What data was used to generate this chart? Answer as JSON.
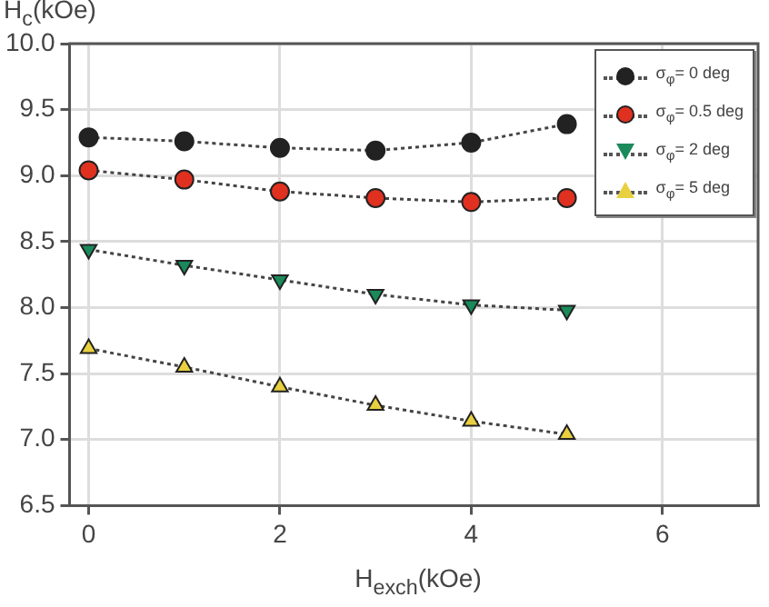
{
  "chart_data": {
    "type": "line",
    "xlabel": "H$_{exch}$(kOe)",
    "ylabel": "H$_{c}$(kOe)",
    "x": [
      0,
      1,
      2,
      3,
      4,
      5
    ],
    "series": [
      {
        "name": "σ$_{φ}$= 0 deg",
        "color": "#222222",
        "marker": "circle",
        "values": [
          9.29,
          9.26,
          9.21,
          9.19,
          9.25,
          9.39
        ]
      },
      {
        "name": "σ$_{φ}$= 0.5 deg",
        "color": "#e03020",
        "marker": "circle",
        "values": [
          9.04,
          8.97,
          8.88,
          8.83,
          8.8,
          8.83
        ]
      },
      {
        "name": "σ$_{φ}$= 2 deg",
        "color": "#1a8a5a",
        "marker": "triangle-down",
        "values": [
          8.44,
          8.32,
          8.21,
          8.1,
          8.02,
          7.98
        ]
      },
      {
        "name": "σ$_{φ}$= 5 deg",
        "color": "#e8d040",
        "marker": "triangle",
        "values": [
          7.69,
          7.55,
          7.4,
          7.26,
          7.14,
          7.04
        ]
      }
    ],
    "xlim": [
      -0.2,
      7
    ],
    "xticks": [
      0,
      2,
      4,
      6
    ],
    "ylim": [
      6.5,
      10
    ],
    "yticks": [
      {
        "value": 6.5,
        "label": "6.5"
      },
      {
        "value": 7,
        "label": "7.0"
      },
      {
        "value": 7.5,
        "label": "7.5"
      },
      {
        "value": 8,
        "label": "8.0"
      },
      {
        "value": 8.5,
        "label": "8.5"
      },
      {
        "value": 9,
        "label": "9.0"
      },
      {
        "value": 9.5,
        "label": "9.5"
      },
      {
        "value": 10,
        "label": "10.0"
      }
    ],
    "grid": true,
    "legend": "top right",
    "line_style": "dotted"
  }
}
